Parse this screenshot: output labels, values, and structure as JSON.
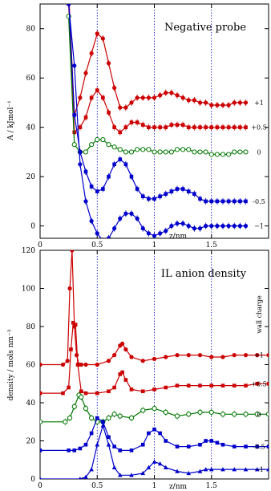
{
  "chart_data": [
    {
      "type": "line",
      "title": "Negative probe",
      "xlabel": "z/nm",
      "ylabel": "A / kJmol⁻¹",
      "xlim": [
        0,
        2
      ],
      "ylim": [
        -5,
        90
      ],
      "xticks": [
        "0",
        "0.5",
        "1",
        "1.5"
      ],
      "yticks": [
        "0",
        "20",
        "40",
        "60",
        "80"
      ],
      "vlines": [
        0.5,
        1.0,
        1.5
      ],
      "grid": false,
      "legend": "right-side labels",
      "series": [
        {
          "name": "+1",
          "color": "#cc0000",
          "marker": "circle-filled",
          "x": [
            0.25,
            0.3,
            0.35,
            0.4,
            0.45,
            0.5,
            0.55,
            0.6,
            0.65,
            0.7,
            0.75,
            0.8,
            0.85,
            0.9,
            0.95,
            1.0,
            1.05,
            1.1,
            1.15,
            1.2,
            1.25,
            1.3,
            1.35,
            1.4,
            1.45,
            1.5,
            1.55,
            1.6,
            1.65,
            1.7,
            1.75,
            1.8
          ],
          "y": [
            95,
            45,
            52,
            62,
            70,
            78,
            76,
            66,
            56,
            48,
            48,
            50,
            52,
            52,
            52,
            52,
            53,
            54,
            54,
            53,
            52,
            51,
            51,
            50,
            50,
            49,
            49,
            49,
            49,
            50,
            50,
            50
          ],
          "errorbars": true
        },
        {
          "name": "+0.5",
          "color": "#cc0000",
          "marker": "square-filled",
          "x": [
            0.25,
            0.3,
            0.35,
            0.4,
            0.45,
            0.5,
            0.55,
            0.6,
            0.65,
            0.7,
            0.75,
            0.8,
            0.85,
            0.9,
            0.95,
            1.0,
            1.05,
            1.1,
            1.15,
            1.2,
            1.25,
            1.3,
            1.35,
            1.4,
            1.45,
            1.5,
            1.55,
            1.6,
            1.65,
            1.7,
            1.75,
            1.8
          ],
          "y": [
            90,
            38,
            40,
            44,
            52,
            55,
            52,
            46,
            40,
            38,
            40,
            42,
            42,
            41,
            40,
            40,
            40,
            40,
            41,
            41,
            41,
            40,
            40,
            40,
            40,
            40,
            40,
            40,
            40,
            40,
            40,
            40
          ],
          "errorbars": true
        },
        {
          "name": "0",
          "color": "#007700",
          "marker": "circle-open",
          "x": [
            0.25,
            0.3,
            0.35,
            0.4,
            0.45,
            0.5,
            0.55,
            0.6,
            0.65,
            0.7,
            0.75,
            0.8,
            0.85,
            0.9,
            0.95,
            1.0,
            1.05,
            1.1,
            1.15,
            1.2,
            1.25,
            1.3,
            1.35,
            1.4,
            1.45,
            1.5,
            1.55,
            1.6,
            1.65,
            1.7,
            1.75,
            1.8
          ],
          "y": [
            85,
            33,
            30,
            30,
            33,
            35,
            35,
            33,
            32,
            31,
            30,
            30,
            31,
            31,
            31,
            30,
            30,
            30,
            30,
            31,
            31,
            31,
            30,
            30,
            30,
            29,
            29,
            29,
            29,
            30,
            30,
            30
          ]
        },
        {
          "name": "-0.5",
          "color": "#0000cc",
          "marker": "square-filled",
          "x": [
            0.25,
            0.3,
            0.35,
            0.4,
            0.45,
            0.5,
            0.55,
            0.6,
            0.65,
            0.7,
            0.75,
            0.8,
            0.85,
            0.9,
            0.95,
            1.0,
            1.05,
            1.1,
            1.15,
            1.2,
            1.25,
            1.3,
            1.35,
            1.4,
            1.45,
            1.5,
            1.55,
            1.6,
            1.65,
            1.7,
            1.75,
            1.8
          ],
          "y": [
            92,
            45,
            30,
            22,
            16,
            14,
            15,
            20,
            25,
            27,
            25,
            20,
            15,
            12,
            11,
            11,
            12,
            13,
            14,
            15,
            15,
            14,
            13,
            11,
            10,
            10,
            10,
            10,
            10,
            10,
            10,
            10
          ],
          "errorbars": true
        },
        {
          "name": "−1",
          "color": "#0000cc",
          "marker": "circle-filled",
          "x": [
            0.25,
            0.3,
            0.35,
            0.4,
            0.45,
            0.5,
            0.55,
            0.6,
            0.65,
            0.7,
            0.75,
            0.8,
            0.85,
            0.9,
            0.95,
            1.0,
            1.05,
            1.1,
            1.15,
            1.2,
            1.25,
            1.3,
            1.35,
            1.4,
            1.45,
            1.5,
            1.55,
            1.6,
            1.65,
            1.7,
            1.75,
            1.8
          ],
          "y": [
            90,
            65,
            25,
            10,
            2,
            -3,
            -6,
            -5,
            -1,
            3,
            5,
            5,
            3,
            -1,
            -3,
            -4,
            -3,
            -2,
            0,
            1,
            1,
            0,
            -1,
            -1,
            0,
            0,
            0,
            0,
            0,
            0,
            0,
            0
          ],
          "errorbars": true
        }
      ]
    },
    {
      "type": "line",
      "title": "IL anion density",
      "xlabel": "z/nm",
      "ylabel": "density / mols nm⁻³",
      "legend_title": "wall charge",
      "xlim": [
        0,
        2
      ],
      "ylim": [
        0,
        120
      ],
      "xticks": [
        "0",
        "0.5",
        "1",
        "1.5"
      ],
      "yticks": [
        "0",
        "20",
        "40",
        "60",
        "80",
        "100",
        "120"
      ],
      "vlines": [
        0.5,
        1.0,
        1.5
      ],
      "grid": false,
      "series": [
        {
          "name": "+1",
          "color": "#cc0000",
          "marker": "circle-filled",
          "x": [
            0,
            0.2,
            0.24,
            0.26,
            0.28,
            0.3,
            0.32,
            0.34,
            0.36,
            0.4,
            0.5,
            0.6,
            0.65,
            0.7,
            0.72,
            0.75,
            0.8,
            0.9,
            1.0,
            1.1,
            1.2,
            1.3,
            1.4,
            1.5,
            1.6,
            1.7,
            1.8,
            1.9,
            2.0
          ],
          "y": [
            60,
            60,
            62,
            100,
            120,
            80,
            65,
            60,
            60,
            60,
            60,
            62,
            65,
            70,
            71,
            68,
            64,
            62,
            63,
            64,
            65,
            65,
            65,
            64,
            64,
            65,
            65,
            65,
            65
          ]
        },
        {
          "name": "+0.5",
          "color": "#cc0000",
          "marker": "square-filled",
          "x": [
            0,
            0.2,
            0.25,
            0.27,
            0.29,
            0.31,
            0.33,
            0.36,
            0.4,
            0.5,
            0.6,
            0.65,
            0.7,
            0.72,
            0.75,
            0.8,
            0.9,
            1.0,
            1.1,
            1.2,
            1.3,
            1.4,
            1.5,
            1.6,
            1.7,
            1.8,
            1.9,
            2.0
          ],
          "y": [
            45,
            45,
            48,
            68,
            82,
            81,
            60,
            46,
            45,
            45,
            46,
            48,
            55,
            56,
            52,
            47,
            46,
            47,
            48,
            49,
            49,
            49,
            49,
            49,
            49,
            49,
            50,
            50
          ]
        },
        {
          "name": "0",
          "color": "#007700",
          "marker": "circle-open",
          "x": [
            0,
            0.22,
            0.26,
            0.3,
            0.34,
            0.36,
            0.4,
            0.45,
            0.5,
            0.55,
            0.6,
            0.65,
            0.7,
            0.8,
            0.9,
            1.0,
            1.1,
            1.2,
            1.3,
            1.4,
            1.5,
            1.6,
            1.7,
            1.8,
            1.9,
            2.0
          ],
          "y": [
            30,
            30,
            32,
            38,
            44,
            43,
            37,
            32,
            30,
            30,
            32,
            34,
            33,
            32,
            36,
            37,
            35,
            33,
            34,
            35,
            35,
            34,
            34,
            34,
            34,
            34
          ],
          "errorbars": true
        },
        {
          "name": "-0.5",
          "color": "#0000cc",
          "marker": "square-filled",
          "x": [
            0,
            0.25,
            0.3,
            0.35,
            0.4,
            0.45,
            0.5,
            0.55,
            0.6,
            0.65,
            0.7,
            0.8,
            0.9,
            0.95,
            1.0,
            1.05,
            1.1,
            1.2,
            1.3,
            1.4,
            1.45,
            1.5,
            1.55,
            1.6,
            1.7,
            1.8,
            1.9,
            2.0
          ],
          "y": [
            15,
            15,
            15,
            16,
            18,
            24,
            32,
            30,
            22,
            17,
            15,
            15,
            18,
            24,
            26,
            24,
            20,
            17,
            17,
            18,
            20,
            20,
            19,
            18,
            17,
            17,
            17,
            17
          ]
        },
        {
          "name": "−1",
          "color": "#0000cc",
          "marker": "triangle-filled",
          "x": [
            0,
            0.35,
            0.4,
            0.45,
            0.5,
            0.55,
            0.6,
            0.65,
            0.7,
            0.8,
            0.9,
            0.95,
            1.0,
            1.05,
            1.1,
            1.2,
            1.3,
            1.4,
            1.45,
            1.5,
            1.6,
            1.7,
            1.8,
            1.9,
            2.0
          ],
          "y": [
            0,
            0,
            1,
            5,
            18,
            28,
            18,
            6,
            2,
            2,
            3,
            6,
            9,
            8,
            6,
            4,
            3,
            4,
            5,
            5,
            5,
            5,
            5,
            5,
            5
          ]
        }
      ]
    }
  ]
}
